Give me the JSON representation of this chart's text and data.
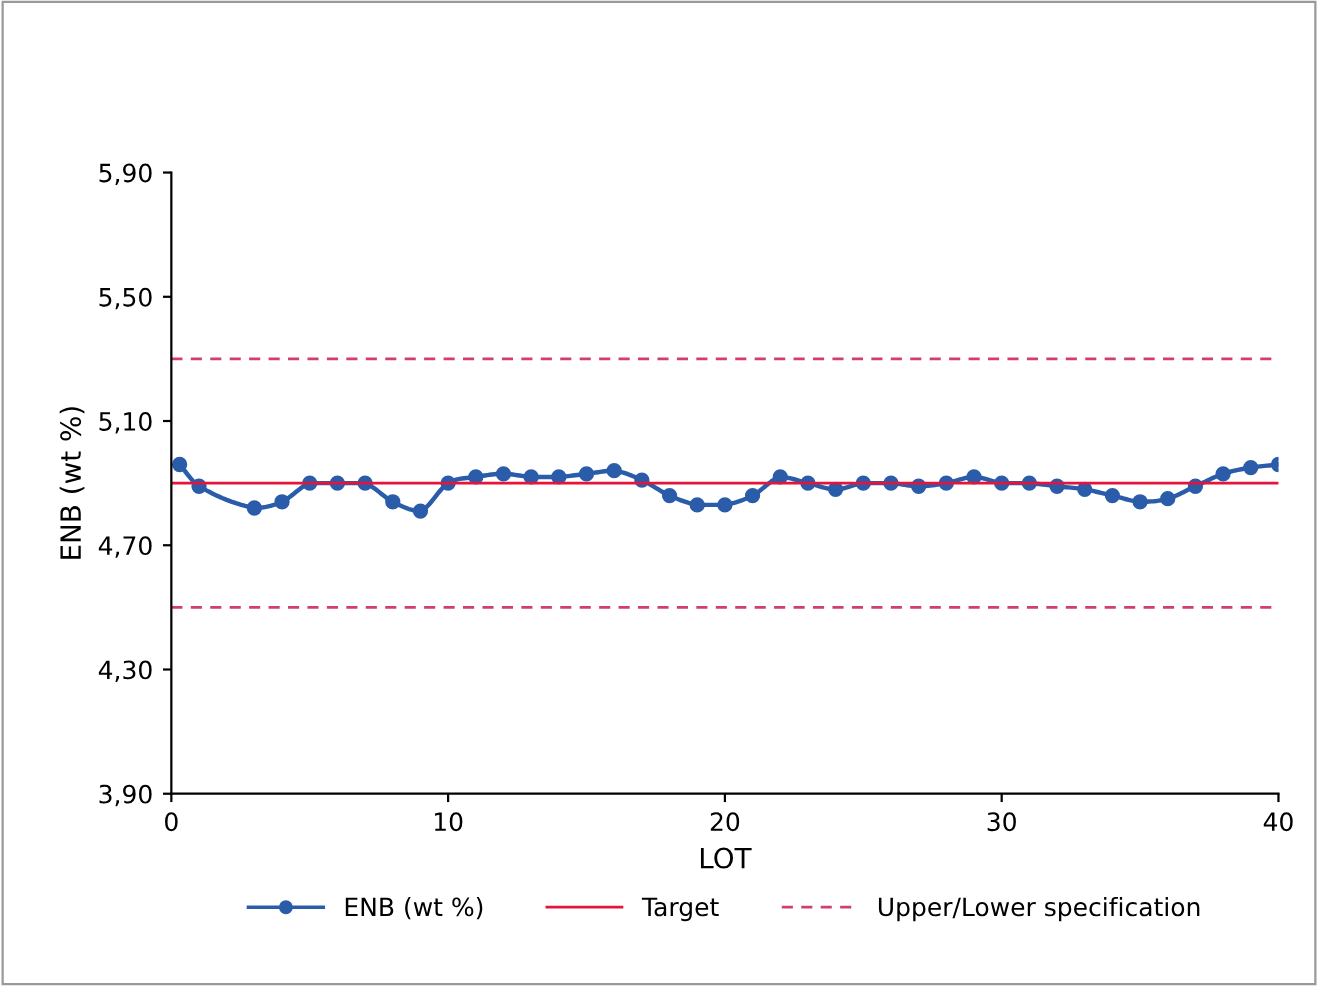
{
  "chart_data": {
    "type": "line",
    "xlabel": "LOT",
    "ylabel": "ENB (wt %)",
    "series": [
      {
        "name": "ENB (wt %)",
        "color": "#2a5caa",
        "marker": "circle",
        "line_style": "solid",
        "x": [
          0.3,
          1,
          3,
          4,
          5,
          6,
          7,
          8,
          9,
          10,
          11,
          12,
          13,
          14,
          15,
          16,
          17,
          18,
          19,
          20,
          21,
          22,
          23,
          24,
          25,
          26,
          27,
          28,
          29,
          30,
          31,
          32,
          33,
          34,
          35,
          36,
          37,
          38,
          39,
          40
        ],
        "values": [
          4.96,
          4.89,
          4.82,
          4.84,
          4.9,
          4.9,
          4.9,
          4.84,
          4.81,
          4.9,
          4.92,
          4.93,
          4.92,
          4.92,
          4.93,
          4.94,
          4.91,
          4.86,
          4.83,
          4.83,
          4.86,
          4.92,
          4.9,
          4.88,
          4.9,
          4.9,
          4.89,
          4.9,
          4.92,
          4.9,
          4.9,
          4.89,
          4.88,
          4.86,
          4.84,
          4.85,
          4.89,
          4.93,
          4.95,
          4.96
        ]
      }
    ],
    "ref_lines": [
      {
        "axis": "y",
        "value": 4.9,
        "label": "Target",
        "color": "#e4143c",
        "line_style": "solid"
      },
      {
        "axis": "y",
        "value": 5.3,
        "label": "Upper/Lower specification",
        "color": "#d0406a",
        "line_style": "dashed"
      },
      {
        "axis": "y",
        "value": 4.5,
        "color": "#d0406a",
        "line_style": "dashed"
      }
    ],
    "xlim": [
      0,
      40
    ],
    "xticks": [
      0,
      10,
      20,
      30,
      40
    ],
    "ylim": [
      3.9,
      5.9
    ],
    "yticks": [
      {
        "value": 3.9,
        "label": "3,90"
      },
      {
        "value": 4.3,
        "label": "4,30"
      },
      {
        "value": 4.7,
        "label": "4,70"
      },
      {
        "value": 5.1,
        "label": "5,10"
      },
      {
        "value": 5.5,
        "label": "5,50"
      },
      {
        "value": 5.9,
        "label": "5,90"
      }
    ],
    "grid": false,
    "legend": "bottom"
  }
}
